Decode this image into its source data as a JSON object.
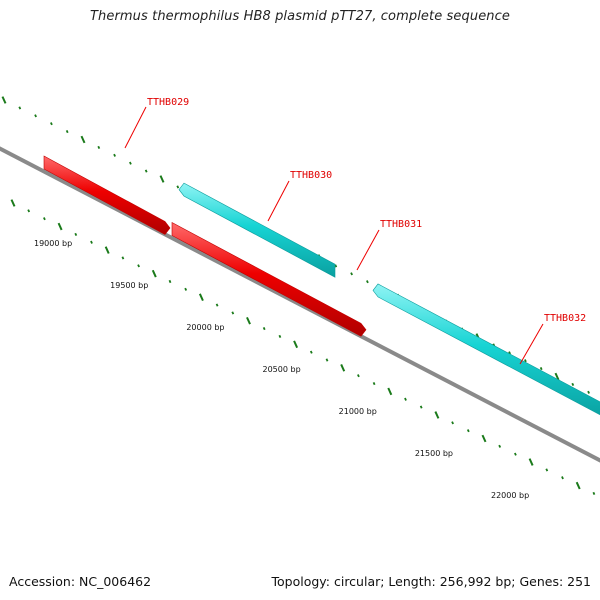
{
  "title": "Thermus thermophilus HB8 plasmid pTT27, complete sequence",
  "footer": {
    "accession": "Accession: NC_006462",
    "summary": "Topology: circular; Length: 256,992 bp; Genes: 251"
  },
  "colors": {
    "forward_gene": "#17d4d4",
    "reverse_gene": "#ee0000",
    "backbone": "#8a8a8a",
    "tick": "#1a7a1a",
    "gene_label": "#e00000"
  },
  "genes": [
    {
      "id": "TTHB029",
      "label": "TTHB029",
      "strand": "reverse"
    },
    {
      "id": "TTHB030",
      "label": "TTHB030",
      "strand": "forward"
    },
    {
      "id": "TTHB031",
      "label": "TTHB031",
      "strand": "reverse"
    },
    {
      "id": "TTHB032",
      "label": "TTHB032",
      "strand": "forward"
    }
  ],
  "bp_labels": [
    {
      "label": "19000 bp",
      "position": 19000
    },
    {
      "label": "19500 bp",
      "position": 19500
    },
    {
      "label": "20000 bp",
      "position": 20000
    },
    {
      "label": "20500 bp",
      "position": 20500
    },
    {
      "label": "21000 bp",
      "position": 21000
    },
    {
      "label": "21500 bp",
      "position": 21500
    },
    {
      "label": "22000 bp",
      "position": 22000
    }
  ]
}
